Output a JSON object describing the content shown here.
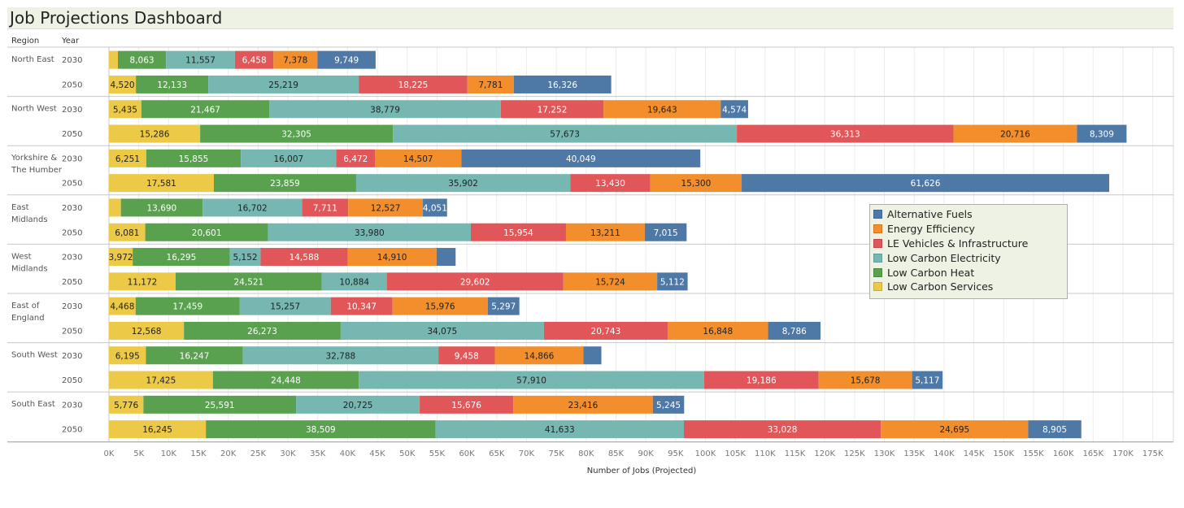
{
  "dashboard": {
    "title": "Job Projections Dashboard",
    "region_header": "Region",
    "year_header": "Year"
  },
  "chart_data": {
    "type": "bar",
    "orientation": "horizontal-stacked",
    "xlabel": "Number of Jobs (Projected)",
    "xlim": [
      0,
      175000
    ],
    "xticks": [
      "0K",
      "5K",
      "10K",
      "15K",
      "20K",
      "25K",
      "30K",
      "35K",
      "40K",
      "45K",
      "50K",
      "55K",
      "60K",
      "65K",
      "70K",
      "75K",
      "80K",
      "85K",
      "90K",
      "95K",
      "100K",
      "105K",
      "110K",
      "115K",
      "120K",
      "125K",
      "130K",
      "135K",
      "140K",
      "145K",
      "150K",
      "155K",
      "160K",
      "165K",
      "170K",
      "175K"
    ],
    "grid": true,
    "legend_position": "right",
    "series": [
      {
        "name": "Low Carbon Services",
        "color": "#edc948"
      },
      {
        "name": "Low Carbon Heat",
        "color": "#59a14f"
      },
      {
        "name": "Low Carbon Electricity",
        "color": "#76b7b2"
      },
      {
        "name": "LE Vehicles & Infrastructure",
        "color": "#e15759"
      },
      {
        "name": "Energy Efficiency",
        "color": "#f28e2b"
      },
      {
        "name": "Alternative Fuels",
        "color": "#4e79a7"
      }
    ],
    "legend_order": [
      "Alternative Fuels",
      "Energy Efficiency",
      "LE Vehicles & Infrastructure",
      "Low Carbon Electricity",
      "Low Carbon Heat",
      "Low Carbon Services"
    ],
    "regions": [
      {
        "name": "North East",
        "years": [
          {
            "year": "2030",
            "values": [
              1500,
              8063,
              11557,
              6458,
              7378,
              9749
            ],
            "labels": [
              "",
              "8,063",
              "11,557",
              "6,458",
              "7,378",
              "9,749"
            ]
          },
          {
            "year": "2050",
            "values": [
              4520,
              12133,
              25219,
              18225,
              7781,
              16326
            ],
            "labels": [
              "4,520",
              "12,133",
              "25,219",
              "18,225",
              "7,781",
              "16,326"
            ]
          }
        ]
      },
      {
        "name": "North West",
        "years": [
          {
            "year": "2030",
            "values": [
              5435,
              21467,
              38779,
              17252,
              19643,
              4574
            ],
            "labels": [
              "5,435",
              "21,467",
              "38,779",
              "17,252",
              "19,643",
              "4,574"
            ]
          },
          {
            "year": "2050",
            "values": [
              15286,
              32305,
              57673,
              36313,
              20716,
              8309
            ],
            "labels": [
              "15,286",
              "32,305",
              "57,673",
              "36,313",
              "20,716",
              "8,309"
            ]
          }
        ]
      },
      {
        "name": "Yorkshire & The Humber",
        "years": [
          {
            "year": "2030",
            "values": [
              6251,
              15855,
              16007,
              6472,
              14507,
              40049
            ],
            "labels": [
              "6,251",
              "15,855",
              "16,007",
              "6,472",
              "14,507",
              "40,049"
            ]
          },
          {
            "year": "2050",
            "values": [
              17581,
              23859,
              35902,
              13430,
              15300,
              61626
            ],
            "labels": [
              "17,581",
              "23,859",
              "35,902",
              "13,430",
              "15,300",
              "61,626"
            ]
          }
        ]
      },
      {
        "name": "East Midlands",
        "years": [
          {
            "year": "2030",
            "values": [
              2000,
              13690,
              16702,
              7711,
              12527,
              4051
            ],
            "labels": [
              "",
              "13,690",
              "16,702",
              "7,711",
              "12,527",
              "4,051"
            ]
          },
          {
            "year": "2050",
            "values": [
              6081,
              20601,
              33980,
              15954,
              13211,
              7015
            ],
            "labels": [
              "6,081",
              "20,601",
              "33,980",
              "15,954",
              "13,211",
              "7,015"
            ]
          }
        ]
      },
      {
        "name": "West Midlands",
        "years": [
          {
            "year": "2030",
            "values": [
              3972,
              16295,
              5152,
              14588,
              14910,
              3200
            ],
            "labels": [
              "3,972",
              "16,295",
              "5,152",
              "14,588",
              "14,910",
              ""
            ]
          },
          {
            "year": "2050",
            "values": [
              11172,
              24521,
              10884,
              29602,
              15724,
              5112
            ],
            "labels": [
              "11,172",
              "24,521",
              "10,884",
              "29,602",
              "15,724",
              "5,112"
            ]
          }
        ]
      },
      {
        "name": "East of England",
        "years": [
          {
            "year": "2030",
            "values": [
              4468,
              17459,
              15257,
              10347,
              15976,
              5297
            ],
            "labels": [
              "4,468",
              "17,459",
              "15,257",
              "10,347",
              "15,976",
              "5,297"
            ]
          },
          {
            "year": "2050",
            "values": [
              12568,
              26273,
              34075,
              20743,
              16848,
              8786
            ],
            "labels": [
              "12,568",
              "26,273",
              "34,075",
              "20,743",
              "16,848",
              "8,786"
            ]
          }
        ]
      },
      {
        "name": "South West",
        "years": [
          {
            "year": "2030",
            "values": [
              6195,
              16247,
              32788,
              9458,
              14866,
              3000
            ],
            "labels": [
              "6,195",
              "16,247",
              "32,788",
              "9,458",
              "14,866",
              ""
            ]
          },
          {
            "year": "2050",
            "values": [
              17425,
              24448,
              57910,
              19186,
              15678,
              5117
            ],
            "labels": [
              "17,425",
              "24,448",
              "57,910",
              "19,186",
              "15,678",
              "5,117"
            ]
          }
        ]
      },
      {
        "name": "South East",
        "years": [
          {
            "year": "2030",
            "values": [
              5776,
              25591,
              20725,
              15676,
              23416,
              5245
            ],
            "labels": [
              "5,776",
              "25,591",
              "20,725",
              "15,676",
              "23,416",
              "5,245"
            ]
          },
          {
            "year": "2050",
            "values": [
              16245,
              38509,
              41633,
              33028,
              24695,
              8905
            ],
            "labels": [
              "16,245",
              "38,509",
              "41,633",
              "33,028",
              "24,695",
              "8,905"
            ]
          }
        ]
      }
    ]
  }
}
